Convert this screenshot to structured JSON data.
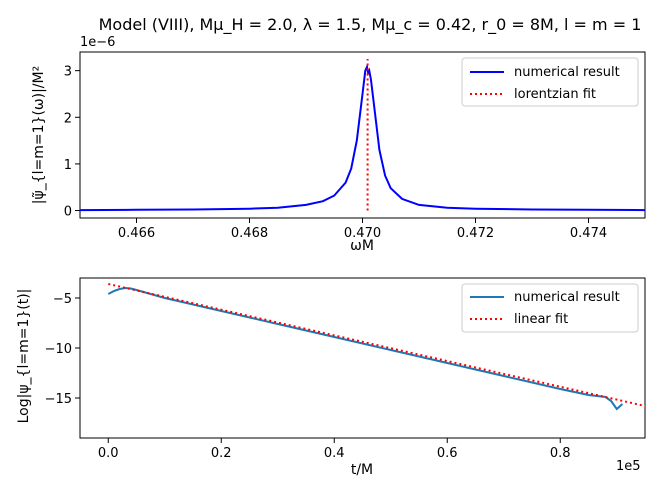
{
  "chart_data": [
    {
      "type": "line",
      "title": "Model (VIII), Mμ_H = 2.0, λ = 1.5, Mμ_c = 0.42, r_0 = 8M, l = m = 1",
      "xlabel": "ωM",
      "ylabel": "|ψ̃_{l=m=1}(ω)|/M²",
      "offset_label": "1e−6",
      "xlim": [
        0.465,
        0.475
      ],
      "ylim": [
        -0.16,
        3.4
      ],
      "xticks": [
        0.466,
        0.468,
        0.47,
        0.472,
        0.474
      ],
      "xtick_labels": [
        "0.466",
        "0.468",
        "0.470",
        "0.472",
        "0.474"
      ],
      "yticks": [
        0,
        1,
        2,
        3
      ],
      "ytick_labels": [
        "0",
        "1",
        "2",
        "3"
      ],
      "legend_position": "top-right",
      "series": [
        {
          "name": "numerical result",
          "style": "solid",
          "color": "#0000ff",
          "x": [
            0.465,
            0.466,
            0.467,
            0.468,
            0.4685,
            0.469,
            0.4693,
            0.4695,
            0.4697,
            0.4698,
            0.4699,
            0.47,
            0.47005,
            0.47008,
            0.4701,
            0.47012,
            0.47015,
            0.4702,
            0.4703,
            0.4704,
            0.4705,
            0.4707,
            0.471,
            0.4715,
            0.472,
            0.473,
            0.474,
            0.475
          ],
          "values": [
            0.01,
            0.015,
            0.022,
            0.04,
            0.06,
            0.12,
            0.2,
            0.32,
            0.6,
            0.9,
            1.5,
            2.5,
            3.0,
            3.08,
            2.95,
            3.0,
            2.8,
            2.3,
            1.3,
            0.75,
            0.48,
            0.25,
            0.12,
            0.06,
            0.04,
            0.022,
            0.015,
            0.01
          ]
        },
        {
          "name": "lorentzian fit",
          "style": "dotted",
          "color": "#ff0000",
          "x": [
            0.47009,
            0.47009
          ],
          "values": [
            0,
            3.25
          ]
        }
      ]
    },
    {
      "type": "line",
      "title": "",
      "xlabel": "t/M",
      "ylabel": "Log|ψ_{l=m=1}(t)|",
      "offset_label": "1e5",
      "xlim": [
        -0.05,
        0.95
      ],
      "ylim": [
        -19,
        -3
      ],
      "xticks": [
        0.0,
        0.2,
        0.4,
        0.6,
        0.8
      ],
      "xtick_labels": [
        "0.0",
        "0.2",
        "0.4",
        "0.6",
        "0.8"
      ],
      "yticks": [
        -5,
        -10,
        -15
      ],
      "ytick_labels": [
        "−5",
        "−10",
        "−15"
      ],
      "legend_position": "top-right",
      "series": [
        {
          "name": "numerical result",
          "style": "solid",
          "color": "#1f77b4",
          "x": [
            0.0,
            0.01,
            0.02,
            0.03,
            0.04,
            0.05,
            0.1,
            0.2,
            0.3,
            0.4,
            0.5,
            0.6,
            0.7,
            0.8,
            0.85,
            0.88,
            0.89,
            0.9,
            0.91
          ],
          "values": [
            -4.6,
            -4.3,
            -4.1,
            -4.0,
            -4.05,
            -4.2,
            -5.0,
            -6.3,
            -7.6,
            -8.9,
            -10.2,
            -11.5,
            -12.8,
            -14.1,
            -14.7,
            -14.9,
            -15.3,
            -16.1,
            -15.6
          ]
        },
        {
          "name": "linear fit",
          "style": "dotted",
          "color": "#ff0000",
          "x": [
            0.0,
            0.95
          ],
          "values": [
            -3.6,
            -15.8
          ]
        }
      ]
    }
  ]
}
